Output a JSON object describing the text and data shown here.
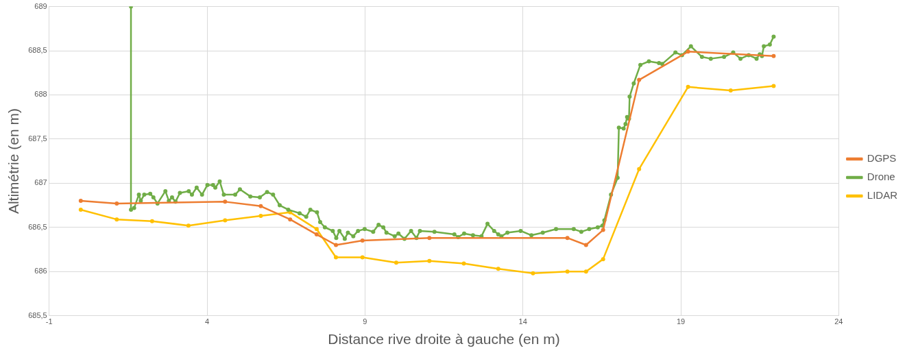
{
  "chart_data": {
    "type": "line",
    "xlabel": "Distance rive droite à gauche (en m)",
    "ylabel": "Altimétrie (en m)",
    "xlim": [
      -1,
      24
    ],
    "xticks": [
      -1,
      4,
      9,
      14,
      19,
      24
    ],
    "ylim": [
      685.5,
      689
    ],
    "yticks": [
      {
        "value": 685.5,
        "label": "685,5"
      },
      {
        "value": 686,
        "label": "686"
      },
      {
        "value": 686.5,
        "label": "686,5"
      },
      {
        "value": 687,
        "label": "687"
      },
      {
        "value": 687.5,
        "label": "687,5"
      },
      {
        "value": 688,
        "label": "688"
      },
      {
        "value": 688.5,
        "label": "688,5"
      },
      {
        "value": 689,
        "label": "689"
      }
    ],
    "grid": true,
    "legend": "right",
    "marker": "circle",
    "line_style": "solid",
    "series": [
      {
        "name": "DGPS",
        "color": "#ed7d31",
        "x": [
          0,
          1.14,
          4.57,
          5.7,
          6.63,
          7.47,
          8.08,
          8.92,
          11.04,
          15.41,
          16.0,
          16.54,
          17.68,
          19.23,
          21.94
        ],
        "values": [
          686.8,
          686.77,
          686.79,
          686.74,
          686.59,
          686.42,
          686.3,
          686.35,
          686.38,
          686.38,
          686.3,
          686.47,
          688.17,
          688.49,
          688.44
        ]
      },
      {
        "name": "Drone",
        "color": "#70ad47",
        "x": [
          1.59,
          1.59,
          1.69,
          1.84,
          1.9,
          2.01,
          2.2,
          2.3,
          2.43,
          2.68,
          2.79,
          2.89,
          3.0,
          3.14,
          3.42,
          3.52,
          3.67,
          3.84,
          4.01,
          4.19,
          4.26,
          4.4,
          4.53,
          4.89,
          5.04,
          5.37,
          5.67,
          5.9,
          6.09,
          6.3,
          6.57,
          6.93,
          7.14,
          7.27,
          7.48,
          7.58,
          7.73,
          7.98,
          8.09,
          8.19,
          8.36,
          8.46,
          8.63,
          8.78,
          8.99,
          9.26,
          9.43,
          9.58,
          9.68,
          9.94,
          10.06,
          10.25,
          10.46,
          10.63,
          10.74,
          11.2,
          11.83,
          11.95,
          12.14,
          12.42,
          12.69,
          12.88,
          13.09,
          13.22,
          13.32,
          13.51,
          13.93,
          14.27,
          14.63,
          15.05,
          15.61,
          15.85,
          16.1,
          16.37,
          16.52,
          16.58,
          16.79,
          17.0,
          17.04,
          17.19,
          17.25,
          17.3,
          17.36,
          17.38,
          17.51,
          17.72,
          17.99,
          18.31,
          18.41,
          18.83,
          19.04,
          19.32,
          19.67,
          19.95,
          20.37,
          20.66,
          20.89,
          21.15,
          21.4,
          21.5,
          21.57,
          21.63,
          21.82,
          21.94
        ],
        "values": [
          689,
          686.7,
          686.72,
          686.87,
          686.8,
          686.87,
          686.88,
          686.84,
          686.77,
          686.91,
          686.8,
          686.84,
          686.79,
          686.89,
          686.91,
          686.87,
          686.95,
          686.87,
          686.98,
          686.98,
          686.95,
          687.02,
          686.87,
          686.87,
          686.93,
          686.85,
          686.84,
          686.9,
          686.87,
          686.75,
          686.7,
          686.66,
          686.62,
          686.7,
          686.67,
          686.56,
          686.5,
          686.46,
          686.38,
          686.46,
          686.37,
          686.44,
          686.4,
          686.46,
          686.48,
          686.45,
          686.53,
          686.5,
          686.44,
          686.4,
          686.43,
          686.37,
          686.46,
          686.38,
          686.46,
          686.45,
          686.42,
          686.39,
          686.43,
          686.41,
          686.4,
          686.54,
          686.46,
          686.42,
          686.4,
          686.44,
          686.46,
          686.41,
          686.44,
          686.48,
          686.48,
          686.45,
          686.48,
          686.5,
          686.52,
          686.58,
          686.87,
          687.06,
          687.63,
          687.62,
          687.67,
          687.75,
          687.73,
          687.98,
          688.13,
          688.34,
          688.38,
          688.36,
          688.35,
          688.48,
          688.45,
          688.55,
          688.43,
          688.41,
          688.43,
          688.48,
          688.41,
          688.45,
          688.41,
          688.46,
          688.44,
          688.55,
          688.57,
          688.66
        ]
      },
      {
        "name": "LIDAR",
        "color": "#ffc000",
        "x": [
          0,
          1.14,
          2.26,
          3.41,
          4.57,
          5.7,
          6.63,
          7.47,
          8.08,
          8.92,
          9.99,
          11.04,
          12.13,
          13.22,
          14.32,
          15.41,
          16.0,
          16.54,
          17.68,
          19.23,
          20.58,
          21.94
        ],
        "values": [
          686.7,
          686.59,
          686.57,
          686.52,
          686.58,
          686.63,
          686.67,
          686.48,
          686.16,
          686.16,
          686.1,
          686.12,
          686.09,
          686.03,
          685.98,
          686.0,
          686.0,
          686.14,
          687.16,
          688.09,
          688.05,
          688.1
        ]
      }
    ]
  }
}
